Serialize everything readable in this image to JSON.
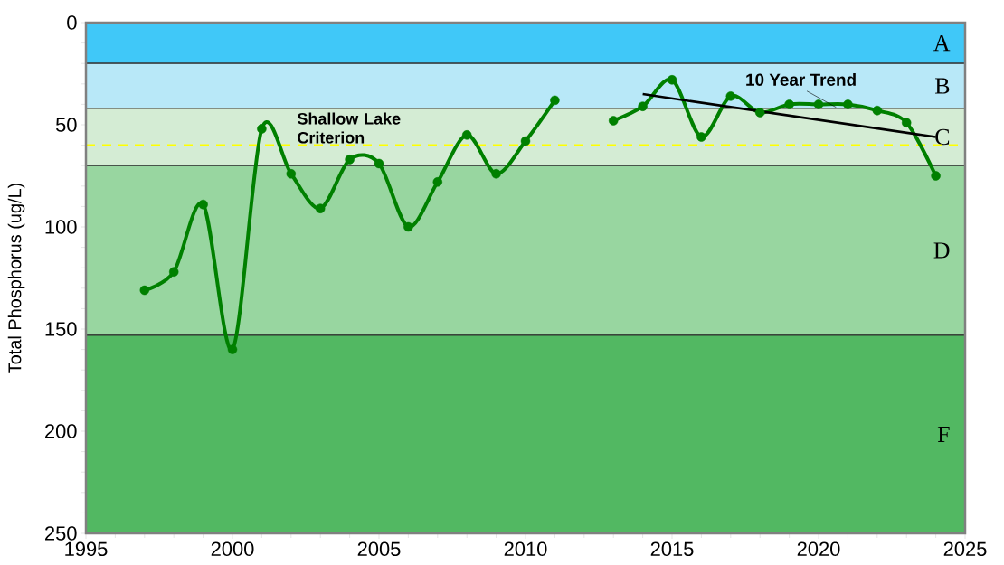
{
  "chart_data": {
    "type": "line",
    "ylabel": "Total Phosphorus (ug/L)",
    "xlim": [
      1995,
      2025
    ],
    "xticks": [
      1995,
      2000,
      2005,
      2010,
      2015,
      2020,
      2025
    ],
    "ylim": [
      250,
      0
    ],
    "yticks": [
      0,
      50,
      100,
      150,
      200,
      250
    ],
    "x": [
      1997,
      1998,
      1999,
      2000,
      2001,
      2002,
      2003,
      2004,
      2005,
      2006,
      2007,
      2008,
      2009,
      2010,
      2011,
      2012,
      2013,
      2014,
      2015,
      2016,
      2017,
      2018,
      2019,
      2020,
      2021,
      2022,
      2023,
      2024
    ],
    "series": [
      {
        "color": "#008000",
        "marker": "circle",
        "values": [
          131,
          122,
          89,
          160,
          52,
          74,
          91,
          67,
          69,
          100,
          78,
          55,
          74,
          58,
          38,
          null,
          48,
          41,
          28,
          56,
          36,
          44,
          40,
          40,
          40,
          43,
          49,
          75
        ]
      },
      {
        "name": "10 Year Trend",
        "type": "line",
        "color": "#000000",
        "marker": "none",
        "x": [
          2014,
          2024
        ],
        "values": [
          35,
          56
        ]
      }
    ],
    "ref_lines": [
      {
        "axis": "y",
        "value": 60,
        "label": "Shallow Lake Criterion",
        "color": "#ffff00",
        "line_style": "dashed"
      }
    ],
    "bands": [
      {
        "axis": "y",
        "from": 0,
        "to": 20,
        "label": "A",
        "color": "#40c8f8"
      },
      {
        "axis": "y",
        "from": 20,
        "to": 42,
        "label": "B",
        "color": "#b8e8f8"
      },
      {
        "axis": "y",
        "from": 42,
        "to": 70,
        "label": "C",
        "color": "#d4ecd4"
      },
      {
        "axis": "y",
        "from": 70,
        "to": 153,
        "label": "D",
        "color": "#98d6a0"
      },
      {
        "axis": "y",
        "from": 153,
        "to": 250,
        "label": "F",
        "color": "#52b862"
      }
    ],
    "grid": false
  }
}
